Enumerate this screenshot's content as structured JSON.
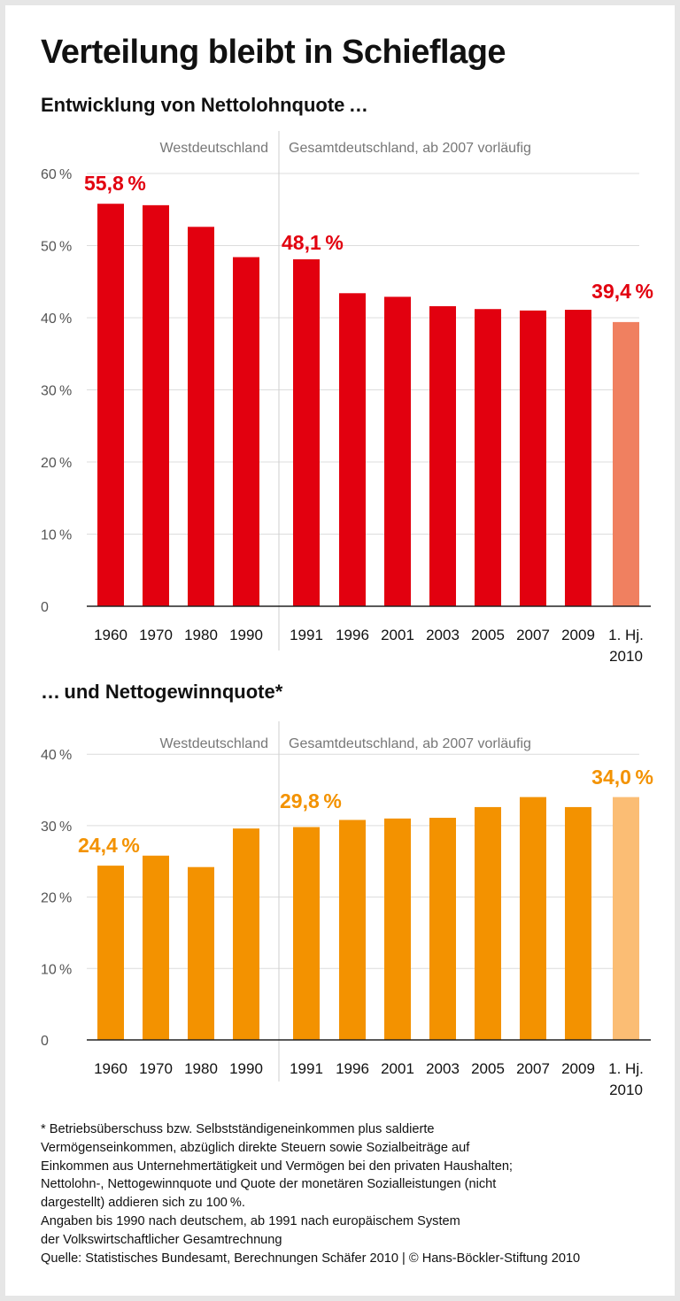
{
  "title": "Verteilung bleibt in Schieflage",
  "chart_data": [
    {
      "type": "bar",
      "title": "Entwicklung von Nettolohnquote …",
      "region_labels": [
        "Westdeutschland",
        "Gesamtdeutschland, ab 2007 vorläufig"
      ],
      "categories": [
        "1960",
        "1970",
        "1980",
        "1990",
        "1991",
        "1996",
        "2001",
        "2003",
        "2005",
        "2007",
        "2009",
        "1. Hj. 2010"
      ],
      "category_lines": [
        [
          "1960"
        ],
        [
          "1970"
        ],
        [
          "1980"
        ],
        [
          "1990"
        ],
        [
          "1991"
        ],
        [
          "1996"
        ],
        [
          "2001"
        ],
        [
          "2003"
        ],
        [
          "2005"
        ],
        [
          "2007"
        ],
        [
          "2009"
        ],
        [
          "1. Hj.",
          "2010"
        ]
      ],
      "values": [
        55.8,
        55.6,
        52.6,
        48.4,
        48.1,
        43.4,
        42.9,
        41.6,
        41.2,
        41.0,
        41.1,
        39.4
      ],
      "data_labels": {
        "0": "55,8 %",
        "4": "48,1 %",
        "11": "39,4 %"
      },
      "yticks": [
        0,
        10,
        20,
        30,
        40,
        50,
        60
      ],
      "ytick_labels": [
        "0",
        "10 %",
        "20 %",
        "30 %",
        "40 %",
        "50 %",
        "60 %"
      ],
      "ylim": [
        0,
        60
      ],
      "grid": true,
      "colors": {
        "bar": "#e2000f",
        "highlight": "#f08060",
        "label": "#e2000f"
      },
      "highlight_index": 11
    },
    {
      "type": "bar",
      "title": "… und Nettogewinnquote*",
      "region_labels": [
        "Westdeutschland",
        "Gesamtdeutschland, ab 2007 vorläufig"
      ],
      "categories": [
        "1960",
        "1970",
        "1980",
        "1990",
        "1991",
        "1996",
        "2001",
        "2003",
        "2005",
        "2007",
        "2009",
        "1. Hj. 2010"
      ],
      "category_lines": [
        [
          "1960"
        ],
        [
          "1970"
        ],
        [
          "1980"
        ],
        [
          "1990"
        ],
        [
          "1991"
        ],
        [
          "1996"
        ],
        [
          "2001"
        ],
        [
          "2003"
        ],
        [
          "2005"
        ],
        [
          "2007"
        ],
        [
          "2009"
        ],
        [
          "1. Hj.",
          "2010"
        ]
      ],
      "values": [
        24.4,
        25.8,
        24.2,
        29.6,
        29.8,
        30.8,
        31.0,
        31.1,
        32.6,
        34.0,
        32.6,
        34.0
      ],
      "data_labels": {
        "0": "24,4 %",
        "4": "29,8 %",
        "11": "34,0 %"
      },
      "yticks": [
        0,
        10,
        20,
        30,
        40
      ],
      "ytick_labels": [
        "0",
        "10 %",
        "20 %",
        "30 %",
        "40 %"
      ],
      "ylim": [
        0,
        40
      ],
      "grid": true,
      "colors": {
        "bar": "#f39200",
        "highlight": "#fbbd74",
        "label": "#f39200"
      },
      "highlight_index": 11
    }
  ],
  "footnote": [
    "* Betriebsüberschuss bzw. Selbstständigeneinkommen plus saldierte",
    "Vermögenseinkommen, abzüglich direkte Steuern sowie Sozialbeiträge auf",
    "Einkommen aus Unternehmertätigkeit und Vermögen bei den privaten Haushalten;",
    "Nettolohn-, Nettogewinnquote und Quote der monetären Sozialleistungen (nicht",
    "dargestellt) addieren sich zu 100 %.",
    "Angaben bis 1990 nach deutschem, ab 1991 nach europäischem System",
    "der Volkswirtschaftlicher Gesamtrechnung",
    "Quelle: Statistisches Bundesamt, Berechnungen Schäfer 2010 | © Hans-Böckler-Stiftung 2010"
  ]
}
